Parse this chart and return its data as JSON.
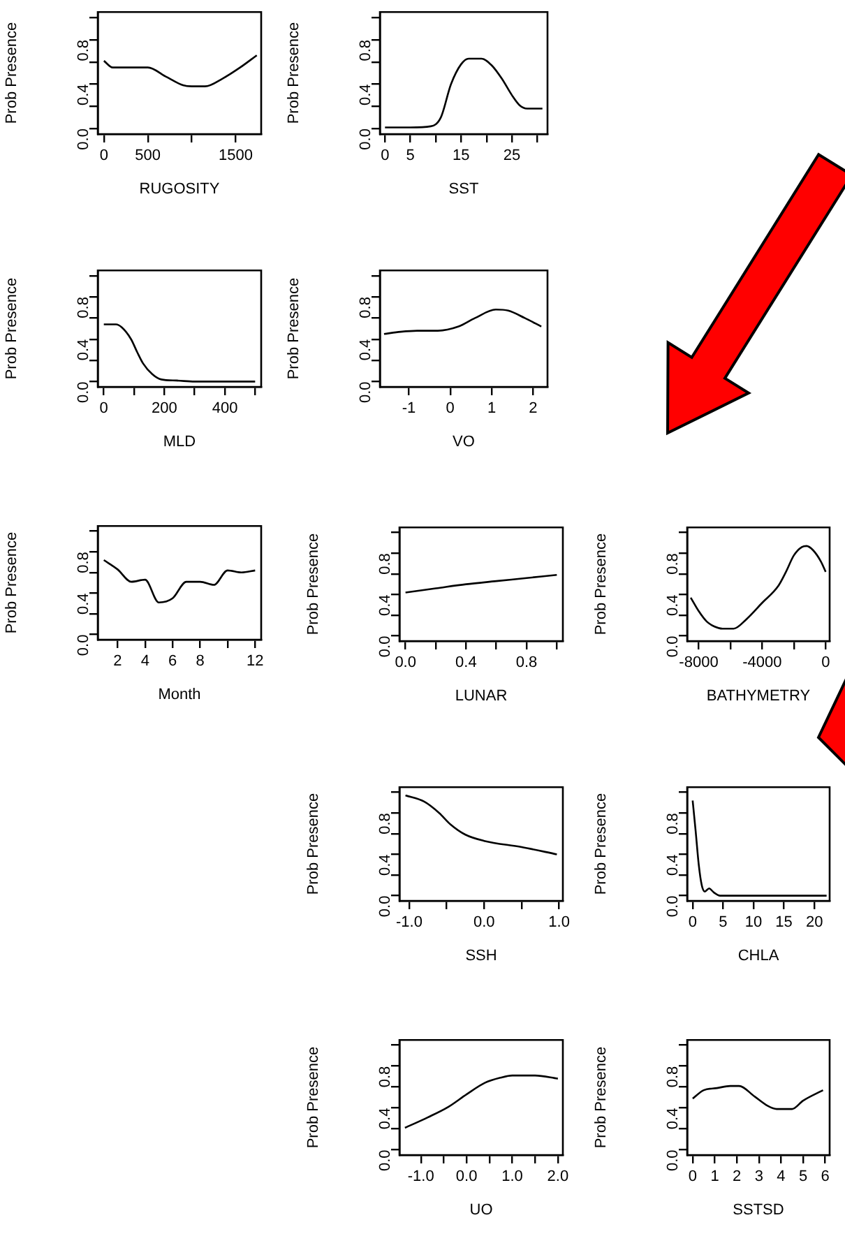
{
  "chart_data": [
    {
      "type": "line",
      "xlabel": "RUGOSITY",
      "ylabel": "Prob Presence",
      "color": "#000000",
      "x": [
        0,
        100,
        500,
        700,
        900,
        1000,
        1150,
        1350,
        1550,
        1740
      ],
      "values": [
        0.61,
        0.55,
        0.55,
        0.47,
        0.39,
        0.38,
        0.38,
        0.45,
        0.55,
        0.66
      ],
      "xlim": [
        -70,
        1790
      ],
      "xticks": [
        0,
        500,
        {
          "value": 1000,
          "label": null
        },
        1500
      ],
      "ylim": [
        -0.05,
        1.05
      ],
      "yticks": [
        {
          "value": 0,
          "label": "0.0"
        },
        {
          "value": 0.2,
          "label": null
        },
        {
          "value": 0.4,
          "label": "0.4"
        },
        {
          "value": 0.6,
          "label": null
        },
        {
          "value": 0.8,
          "label": "0.8"
        },
        {
          "value": 1,
          "label": null
        }
      ]
    },
    {
      "type": "line",
      "xlabel": "SST",
      "ylabel": "Prob Presence",
      "color": "#000000",
      "x": [
        0,
        5,
        9,
        11,
        13,
        15,
        16.5,
        19,
        21,
        23,
        25,
        26.5,
        28,
        31
      ],
      "values": [
        0.01,
        0.01,
        0.02,
        0.1,
        0.4,
        0.58,
        0.63,
        0.63,
        0.57,
        0.45,
        0.3,
        0.21,
        0.18,
        0.18
      ],
      "xlim": [
        -1,
        32
      ],
      "xticks": [
        0,
        5,
        {
          "value": 10,
          "label": null
        },
        15,
        {
          "value": 20,
          "label": null
        },
        25,
        {
          "value": 30,
          "label": null
        }
      ],
      "ylim": [
        -0.05,
        1.05
      ],
      "yticks": [
        {
          "value": 0,
          "label": "0.0"
        },
        {
          "value": 0.2,
          "label": null
        },
        {
          "value": 0.4,
          "label": "0.4"
        },
        {
          "value": 0.6,
          "label": null
        },
        {
          "value": 0.8,
          "label": "0.8"
        },
        {
          "value": 1,
          "label": null
        }
      ]
    },
    {
      "type": "line",
      "xlabel": "MLD",
      "ylabel": "Prob Presence",
      "color": "#000000",
      "x": [
        0,
        40,
        60,
        90,
        110,
        130,
        160,
        190,
        240,
        300,
        500
      ],
      "values": [
        0.54,
        0.54,
        0.51,
        0.4,
        0.28,
        0.17,
        0.07,
        0.02,
        0.01,
        0,
        0
      ],
      "xlim": [
        -20,
        520
      ],
      "xticks": [
        0,
        {
          "value": 100,
          "label": null
        },
        200,
        {
          "value": 300,
          "label": null
        },
        400,
        {
          "value": 500,
          "label": null
        }
      ],
      "ylim": [
        -0.05,
        1.05
      ],
      "yticks": [
        {
          "value": 0,
          "label": "0.0"
        },
        {
          "value": 0.2,
          "label": null
        },
        {
          "value": 0.4,
          "label": "0.4"
        },
        {
          "value": 0.6,
          "label": null
        },
        {
          "value": 0.8,
          "label": "0.8"
        },
        {
          "value": 1,
          "label": null
        }
      ]
    },
    {
      "type": "line",
      "xlabel": "VO",
      "ylabel": "Prob Presence",
      "color": "#000000",
      "x": [
        -1.6,
        -1.2,
        -0.8,
        -0.3,
        0.2,
        0.6,
        1.1,
        1.4,
        1.8,
        2.2
      ],
      "values": [
        0.45,
        0.47,
        0.48,
        0.48,
        0.52,
        0.6,
        0.68,
        0.67,
        0.6,
        0.52
      ],
      "xlim": [
        -1.7,
        2.35
      ],
      "xticks": [
        -1,
        0,
        1,
        2
      ],
      "ylim": [
        -0.05,
        1.05
      ],
      "yticks": [
        {
          "value": 0,
          "label": "0.0"
        },
        {
          "value": 0.2,
          "label": null
        },
        {
          "value": 0.4,
          "label": "0.4"
        },
        {
          "value": 0.6,
          "label": null
        },
        {
          "value": 0.8,
          "label": "0.8"
        },
        {
          "value": 1,
          "label": null
        }
      ]
    },
    {
      "type": "line",
      "xlabel": "Month",
      "ylabel": "Prob Presence",
      "color": "#000000",
      "x": [
        1,
        2,
        3,
        4,
        5,
        6,
        7,
        8,
        9,
        10,
        11,
        12
      ],
      "values": [
        0.72,
        0.63,
        0.51,
        0.53,
        0.31,
        0.35,
        0.51,
        0.51,
        0.48,
        0.62,
        0.6,
        0.62
      ],
      "xlim": [
        0.56,
        12.44
      ],
      "xticks": [
        2,
        4,
        6,
        8,
        {
          "value": 10,
          "label": null
        },
        12
      ],
      "ylim": [
        -0.05,
        1.05
      ],
      "yticks": [
        {
          "value": 0,
          "label": "0.0"
        },
        {
          "value": 0.2,
          "label": null
        },
        {
          "value": 0.4,
          "label": "0.4"
        },
        {
          "value": 0.6,
          "label": null
        },
        {
          "value": 0.8,
          "label": "0.8"
        },
        {
          "value": 1,
          "label": null
        }
      ]
    },
    {
      "type": "line",
      "xlabel": "LUNAR",
      "ylabel": "Prob Presence",
      "color": "#000000",
      "x": [
        0,
        0.2,
        0.4,
        0.6,
        0.8,
        1
      ],
      "values": [
        0.42,
        0.46,
        0.5,
        0.53,
        0.56,
        0.59
      ],
      "xlim": [
        -0.04,
        1.04
      ],
      "xticks": [
        {
          "value": 0,
          "label": "0.0"
        },
        {
          "value": 0.2,
          "label": null
        },
        0.4,
        {
          "value": 0.6,
          "label": null
        },
        0.8,
        {
          "value": 1,
          "label": null
        }
      ],
      "ylim": [
        -0.05,
        1.05
      ],
      "yticks": [
        {
          "value": 0,
          "label": "0.0"
        },
        {
          "value": 0.2,
          "label": null
        },
        {
          "value": 0.4,
          "label": "0.4"
        },
        {
          "value": 0.6,
          "label": null
        },
        {
          "value": 0.8,
          "label": "0.8"
        },
        {
          "value": 1,
          "label": null
        }
      ]
    },
    {
      "type": "line",
      "xlabel": "BATHYMETRY",
      "ylabel": "Prob Presence",
      "color": "#000000",
      "x": [
        -8500,
        -8000,
        -7500,
        -7000,
        -6500,
        -5800,
        -5000,
        -4000,
        -3000,
        -2500,
        -2000,
        -1500,
        -1200,
        -800,
        -300,
        0
      ],
      "values": [
        0.37,
        0.24,
        0.14,
        0.09,
        0.07,
        0.07,
        0.16,
        0.32,
        0.48,
        0.62,
        0.78,
        0.86,
        0.87,
        0.83,
        0.72,
        0.62
      ],
      "xlim": [
        -8725,
        250
      ],
      "xticks": [
        -8000,
        {
          "value": -6000,
          "label": null
        },
        -4000,
        {
          "value": -2000,
          "label": null
        },
        0
      ],
      "ylim": [
        -0.05,
        1.05
      ],
      "yticks": [
        {
          "value": 0,
          "label": "0.0"
        },
        {
          "value": 0.2,
          "label": null
        },
        {
          "value": 0.4,
          "label": "0.4"
        },
        {
          "value": 0.6,
          "label": null
        },
        {
          "value": 0.8,
          "label": "0.8"
        },
        {
          "value": 1,
          "label": null
        }
      ]
    },
    {
      "type": "line",
      "xlabel": "SSH",
      "ylabel": "Prob Presence",
      "color": "#000000",
      "x": [
        -1.05,
        -0.8,
        -0.6,
        -0.45,
        -0.25,
        0,
        0.5,
        0.97
      ],
      "values": [
        0.97,
        0.91,
        0.8,
        0.69,
        0.59,
        0.53,
        0.47,
        0.4
      ],
      "xlim": [
        -1.13,
        1.05
      ],
      "xticks": [
        {
          "value": -1,
          "label": "-1.0"
        },
        {
          "value": -0.5,
          "label": null
        },
        {
          "value": 0,
          "label": "0.0"
        },
        {
          "value": 0.5,
          "label": null
        },
        {
          "value": 1,
          "label": "1.0"
        }
      ],
      "ylim": [
        -0.05,
        1.05
      ],
      "yticks": [
        {
          "value": 0,
          "label": "0.0"
        },
        {
          "value": 0.2,
          "label": null
        },
        {
          "value": 0.4,
          "label": "0.4"
        },
        {
          "value": 0.6,
          "label": null
        },
        {
          "value": 0.8,
          "label": "0.8"
        },
        {
          "value": 1,
          "label": null
        }
      ]
    },
    {
      "type": "line",
      "xlabel": "CHLA",
      "ylabel": "Prob Presence",
      "color": "#000000",
      "x": [
        0,
        0.5,
        1,
        1.5,
        2,
        2.7,
        3.5,
        4.5,
        22
      ],
      "values": [
        0.92,
        0.62,
        0.3,
        0.1,
        0.04,
        0.07,
        0.03,
        0,
        0
      ],
      "xlim": [
        -0.9,
        22.5
      ],
      "xticks": [
        0,
        5,
        10,
        15,
        20
      ],
      "ylim": [
        -0.05,
        1.05
      ],
      "yticks": [
        {
          "value": 0,
          "label": "0.0"
        },
        {
          "value": 0.2,
          "label": null
        },
        {
          "value": 0.4,
          "label": "0.4"
        },
        {
          "value": 0.6,
          "label": null
        },
        {
          "value": 0.8,
          "label": "0.8"
        },
        {
          "value": 1,
          "label": null
        }
      ]
    },
    {
      "type": "line",
      "xlabel": "UO",
      "ylabel": "Prob Presence",
      "color": "#000000",
      "x": [
        -1.35,
        -0.85,
        -0.4,
        0,
        0.4,
        0.75,
        1,
        1.5,
        2
      ],
      "values": [
        0.21,
        0.31,
        0.41,
        0.53,
        0.64,
        0.69,
        0.71,
        0.71,
        0.68
      ],
      "xlim": [
        -1.47,
        2.11
      ],
      "xticks": [
        {
          "value": -1,
          "label": "-1.0"
        },
        {
          "value": -0.5,
          "label": null
        },
        {
          "value": 0,
          "label": "0.0"
        },
        {
          "value": 0.5,
          "label": null
        },
        {
          "value": 1,
          "label": "1.0"
        },
        {
          "value": 1.5,
          "label": null
        },
        {
          "value": 2,
          "label": "2.0"
        }
      ],
      "ylim": [
        -0.05,
        1.05
      ],
      "yticks": [
        {
          "value": 0,
          "label": "0.0"
        },
        {
          "value": 0.2,
          "label": null
        },
        {
          "value": 0.4,
          "label": "0.4"
        },
        {
          "value": 0.6,
          "label": null
        },
        {
          "value": 0.8,
          "label": "0.8"
        },
        {
          "value": 1,
          "label": null
        }
      ]
    },
    {
      "type": "line",
      "xlabel": "SSTSD",
      "ylabel": "Prob Presence",
      "color": "#000000",
      "x": [
        0,
        0.5,
        1.1,
        1.7,
        2.1,
        2.8,
        3.4,
        3.8,
        4.5,
        5,
        5.9
      ],
      "values": [
        0.49,
        0.57,
        0.59,
        0.61,
        0.61,
        0.51,
        0.42,
        0.39,
        0.39,
        0.47,
        0.57
      ],
      "xlim": [
        -0.25,
        6.2
      ],
      "xticks": [
        0,
        1,
        2,
        3,
        4,
        5,
        6
      ],
      "ylim": [
        -0.05,
        1.05
      ],
      "yticks": [
        {
          "value": 0,
          "label": "0.0"
        },
        {
          "value": 0.2,
          "label": null
        },
        {
          "value": 0.4,
          "label": "0.4"
        },
        {
          "value": 0.6,
          "label": null
        },
        {
          "value": 0.8,
          "label": "0.8"
        },
        {
          "value": 1,
          "label": null
        }
      ]
    }
  ]
}
